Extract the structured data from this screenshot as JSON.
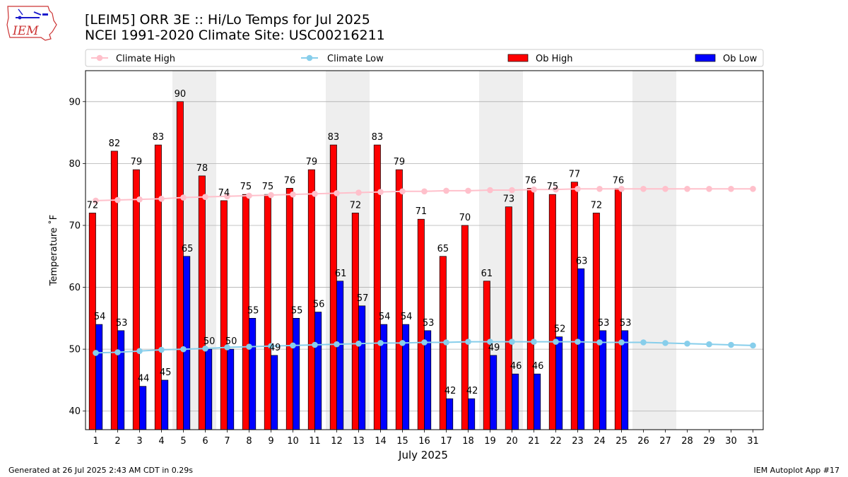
{
  "logo": {
    "text": "IEM"
  },
  "title": {
    "line1": "[LEIM5] ORR 3E :: Hi/Lo Temps for Jul 2025",
    "line2": "NCEI 1991-2020 Climate Site: USC00216211"
  },
  "footer": {
    "left": "Generated at 26 Jul 2025 2:43 AM CDT in 0.29s",
    "right": "IEM Autoplot App #17"
  },
  "colors": {
    "ob_high": "#ff0000",
    "ob_low": "#0000ff",
    "climate_high": "#ffc0cb",
    "climate_low": "#87ceeb",
    "weekend_shade": "#eeeeee",
    "grid": "#b0b0b0"
  },
  "chart_data": {
    "type": "bar",
    "xlabel": "July 2025",
    "ylabel": "Temperature ˚F",
    "ylim": [
      37,
      95
    ],
    "yticks": [
      40,
      50,
      60,
      70,
      80,
      90
    ],
    "days": [
      1,
      2,
      3,
      4,
      5,
      6,
      7,
      8,
      9,
      10,
      11,
      12,
      13,
      14,
      15,
      16,
      17,
      18,
      19,
      20,
      21,
      22,
      23,
      24,
      25,
      26,
      27,
      28,
      29,
      30,
      31
    ],
    "weekend_shading": [
      [
        5,
        6
      ],
      [
        12,
        13
      ],
      [
        19,
        20
      ],
      [
        26,
        27
      ]
    ],
    "grid": "horizontal",
    "legend_position": "top",
    "legend": [
      "Climate High",
      "Climate Low",
      "Ob High",
      "Ob Low"
    ],
    "series": [
      {
        "name": "Ob High",
        "kind": "bar",
        "values": [
          72,
          82,
          79,
          83,
          90,
          78,
          74,
          75,
          75,
          76,
          79,
          83,
          72,
          83,
          79,
          71,
          65,
          70,
          61,
          73,
          76,
          75,
          77,
          72,
          76
        ]
      },
      {
        "name": "Ob Low",
        "kind": "bar",
        "values": [
          54,
          53,
          44,
          45,
          65,
          50,
          50,
          55,
          49,
          55,
          56,
          61,
          57,
          54,
          54,
          53,
          42,
          42,
          49,
          46,
          46,
          52,
          63,
          53,
          53
        ]
      },
      {
        "name": "Climate High",
        "kind": "line",
        "values": [
          74.0,
          74.1,
          74.2,
          74.3,
          74.5,
          74.6,
          74.7,
          74.8,
          74.9,
          75.0,
          75.1,
          75.2,
          75.3,
          75.4,
          75.5,
          75.5,
          75.6,
          75.6,
          75.7,
          75.7,
          75.8,
          75.8,
          75.9,
          75.9,
          75.9,
          75.9,
          75.9,
          75.9,
          75.9,
          75.9,
          75.9
        ]
      },
      {
        "name": "Climate Low",
        "kind": "line",
        "values": [
          49.4,
          49.5,
          49.7,
          49.9,
          50.0,
          50.1,
          50.3,
          50.4,
          50.5,
          50.6,
          50.7,
          50.8,
          50.9,
          51.0,
          51.0,
          51.1,
          51.1,
          51.2,
          51.2,
          51.2,
          51.2,
          51.2,
          51.2,
          51.1,
          51.1,
          51.1,
          51.0,
          50.9,
          50.8,
          50.7,
          50.6
        ]
      }
    ]
  }
}
